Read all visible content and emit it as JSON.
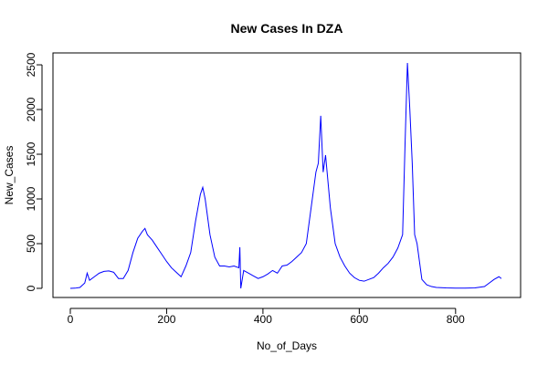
{
  "chart_data": {
    "type": "line",
    "title": "New Cases In DZA",
    "xlabel": "No_of_Days",
    "ylabel": "New_Cases",
    "color": "#0000ff",
    "x": [
      0,
      10,
      20,
      30,
      35,
      40,
      50,
      60,
      70,
      80,
      90,
      100,
      110,
      120,
      130,
      140,
      150,
      155,
      160,
      170,
      180,
      190,
      200,
      210,
      220,
      230,
      240,
      250,
      260,
      270,
      275,
      280,
      290,
      300,
      310,
      320,
      330,
      340,
      350,
      352,
      354,
      360,
      370,
      380,
      390,
      400,
      410,
      420,
      430,
      440,
      450,
      460,
      470,
      480,
      490,
      500,
      510,
      515,
      520,
      525,
      530,
      540,
      550,
      560,
      570,
      580,
      590,
      600,
      610,
      620,
      630,
      640,
      650,
      660,
      670,
      680,
      690,
      695,
      700,
      705,
      710,
      715,
      720,
      725,
      730,
      740,
      750,
      760,
      780,
      800,
      820,
      840,
      860,
      870,
      880,
      890,
      895
    ],
    "values": [
      0,
      2,
      10,
      60,
      170,
      90,
      130,
      170,
      190,
      195,
      180,
      110,
      110,
      200,
      400,
      560,
      640,
      670,
      600,
      540,
      460,
      380,
      300,
      230,
      180,
      130,
      250,
      400,
      750,
      1050,
      1130,
      1000,
      600,
      350,
      250,
      250,
      240,
      250,
      230,
      460,
      0,
      200,
      170,
      140,
      110,
      130,
      160,
      200,
      170,
      250,
      260,
      300,
      350,
      400,
      500,
      900,
      1300,
      1400,
      1930,
      1300,
      1490,
      900,
      500,
      350,
      250,
      170,
      120,
      90,
      80,
      100,
      120,
      170,
      230,
      280,
      350,
      450,
      600,
      1600,
      2520,
      2000,
      1400,
      600,
      500,
      300,
      100,
      40,
      20,
      10,
      5,
      3,
      3,
      5,
      20,
      60,
      100,
      130,
      110
    ],
    "xlim": [
      -36,
      935
    ],
    "ylim": [
      -102,
      2633
    ],
    "xticks": [
      0,
      200,
      400,
      600,
      800
    ],
    "yticks": [
      0,
      500,
      1000,
      1500,
      2000,
      2500
    ]
  }
}
